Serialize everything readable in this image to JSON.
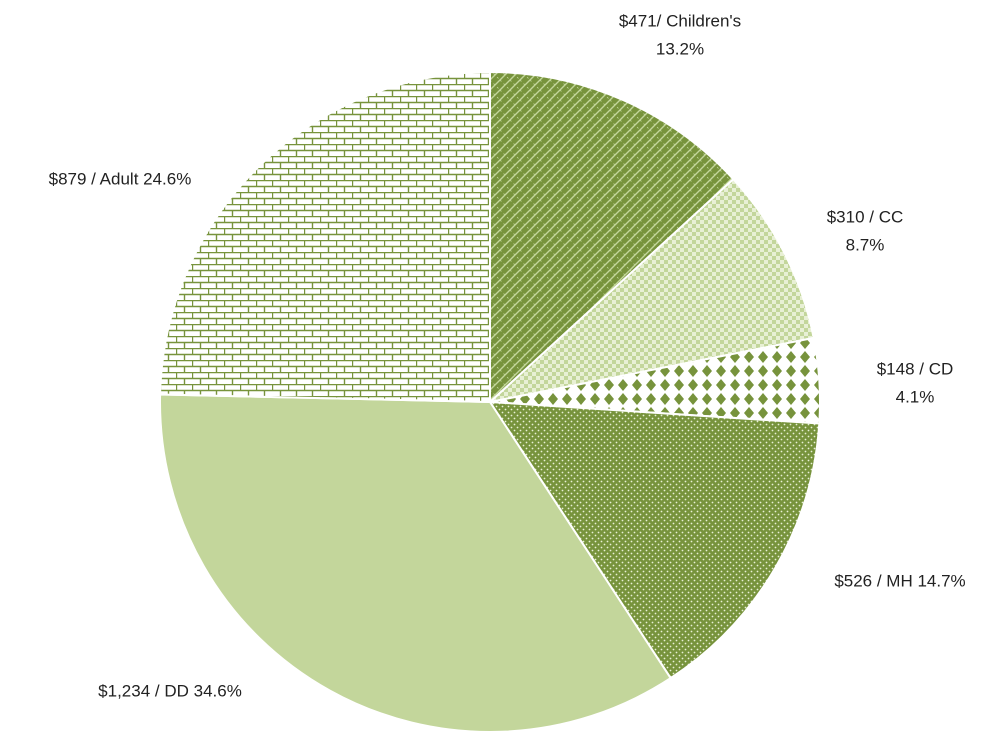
{
  "chart_data": {
    "type": "pie",
    "values": [
      471,
      310,
      148,
      526,
      1234,
      879
    ],
    "value_labels": [
      [
        "$471/  Children's",
        "13.2%"
      ],
      [
        "$310 / CC",
        "8.7%"
      ],
      [
        "$148 / CD",
        "4.1%"
      ],
      [
        "$526 / MH 14.7%"
      ],
      [
        "$1,234 / DD 34.6%"
      ],
      [
        "$879 / Adult  24.6%"
      ]
    ],
    "colors": [
      "#77933c",
      "#c3d69b",
      "#77933c",
      "#77933c",
      "#c3d69b",
      "#77933c"
    ]
  }
}
